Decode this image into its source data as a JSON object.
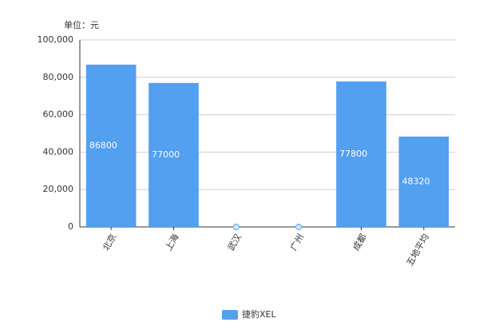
{
  "chart_data": {
    "type": "bar",
    "unit": "单位：元",
    "categories": [
      "北京",
      "上海",
      "武汉",
      "广州",
      "成都",
      "五地平均"
    ],
    "series": [
      {
        "name": "捷豹XEL",
        "color": "#539ff0",
        "values": [
          86800,
          77000,
          0,
          0,
          77800,
          48320
        ]
      }
    ],
    "ylim": [
      0,
      100000
    ],
    "yticks": [
      0,
      {
        "value": 20000,
        "label": "20,000"
      },
      {
        "value": 40000,
        "label": "40,000"
      },
      {
        "value": 60000,
        "label": "60,000"
      },
      {
        "value": 80000,
        "label": "80,000"
      },
      {
        "value": 100000,
        "label": "100,000"
      }
    ],
    "grid": true,
    "legend": "bottom"
  }
}
